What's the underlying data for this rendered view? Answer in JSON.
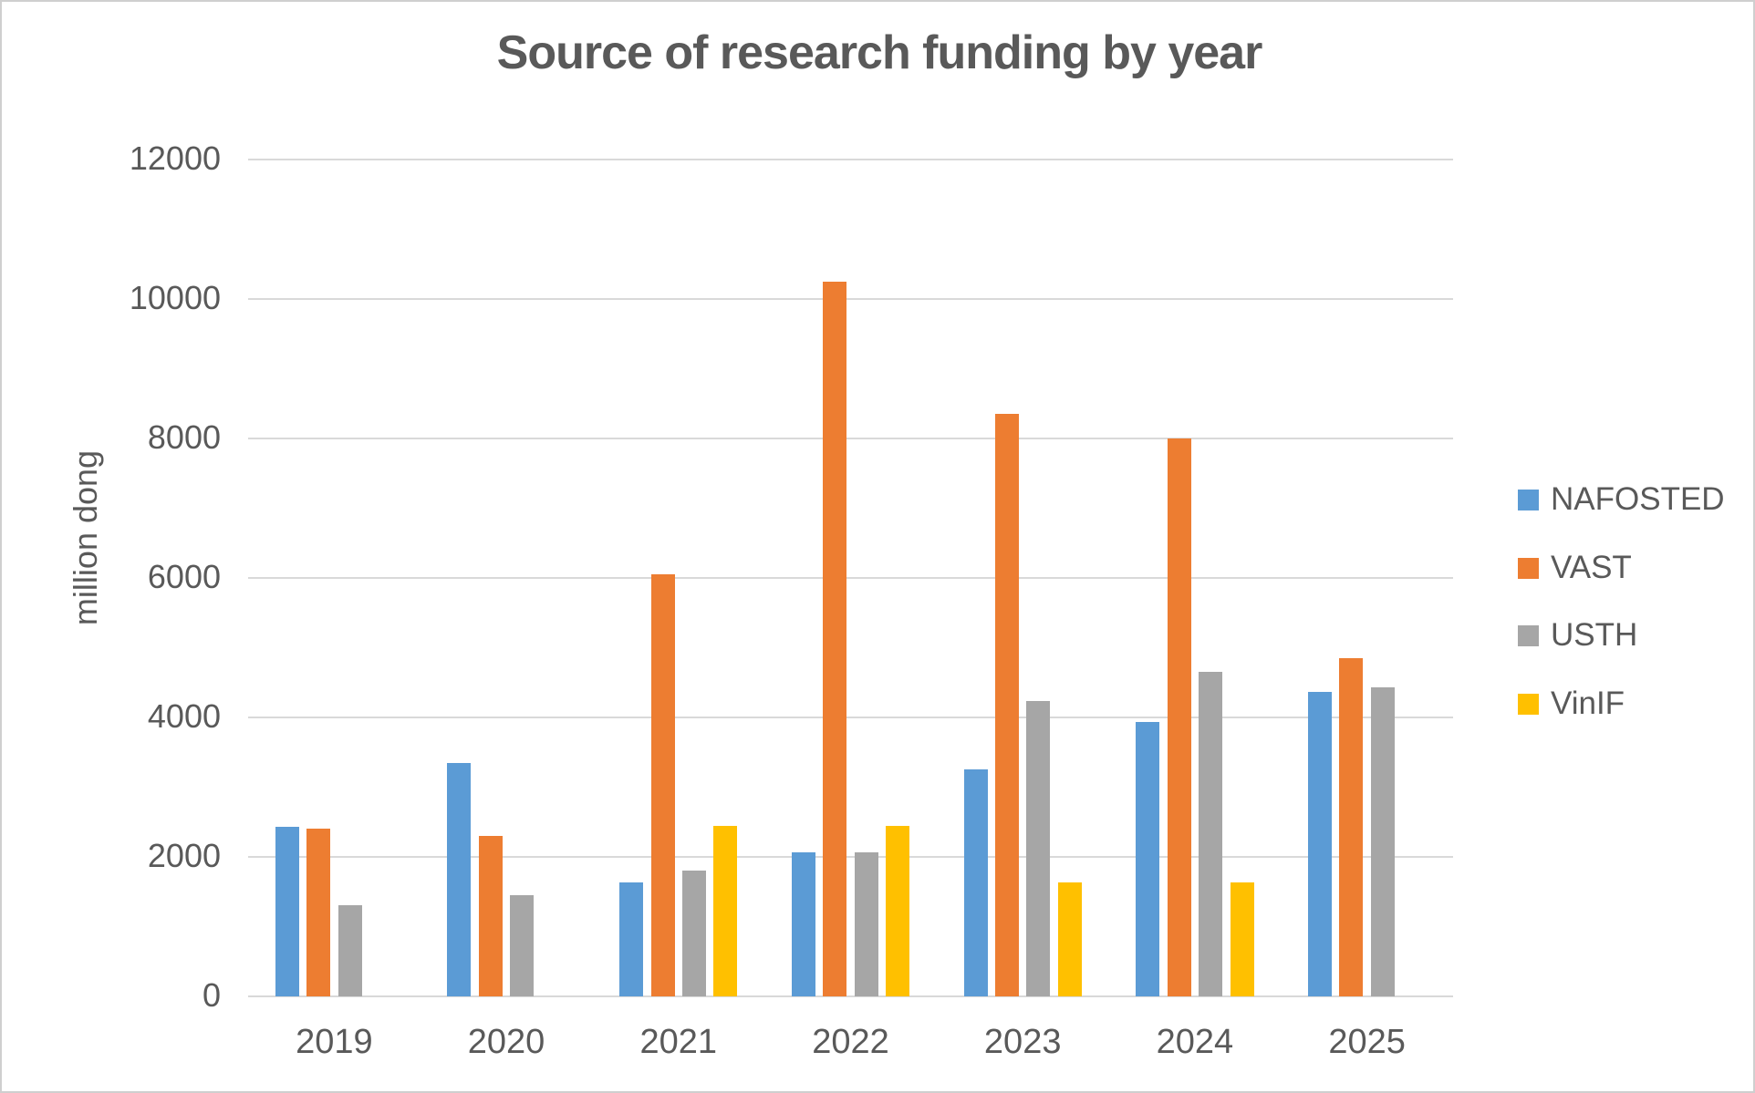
{
  "chart_data": {
    "type": "bar",
    "title": "Source of research funding by year",
    "xlabel": "",
    "ylabel": "million dong",
    "categories": [
      "2019",
      "2020",
      "2021",
      "2022",
      "2023",
      "2024",
      "2025"
    ],
    "series": [
      {
        "name": "NAFOSTED",
        "color": "#5B9BD5",
        "values": [
          2430,
          3350,
          1630,
          2060,
          3260,
          3930,
          4370
        ]
      },
      {
        "name": "VAST",
        "color": "#ED7D31",
        "values": [
          2410,
          2300,
          6050,
          10250,
          8350,
          8000,
          4850
        ]
      },
      {
        "name": "USTH",
        "color": "#A6A6A6",
        "values": [
          1310,
          1450,
          1810,
          2070,
          4230,
          4650,
          4430
        ]
      },
      {
        "name": "VinIF",
        "color": "#FFC000",
        "values": [
          0,
          0,
          2450,
          2450,
          1630,
          1630,
          0
        ]
      }
    ],
    "ylim": [
      0,
      12000
    ],
    "ytick_step": 2000,
    "yticks": [
      "12000",
      "10000",
      "8000",
      "6000",
      "4000",
      "2000",
      "0"
    ],
    "grid": true,
    "legend_position": "right",
    "colors": {
      "text": "#595959",
      "gridline": "#D9D9D9",
      "background": "#FFFFFF",
      "border": "#CFCFCF"
    }
  }
}
